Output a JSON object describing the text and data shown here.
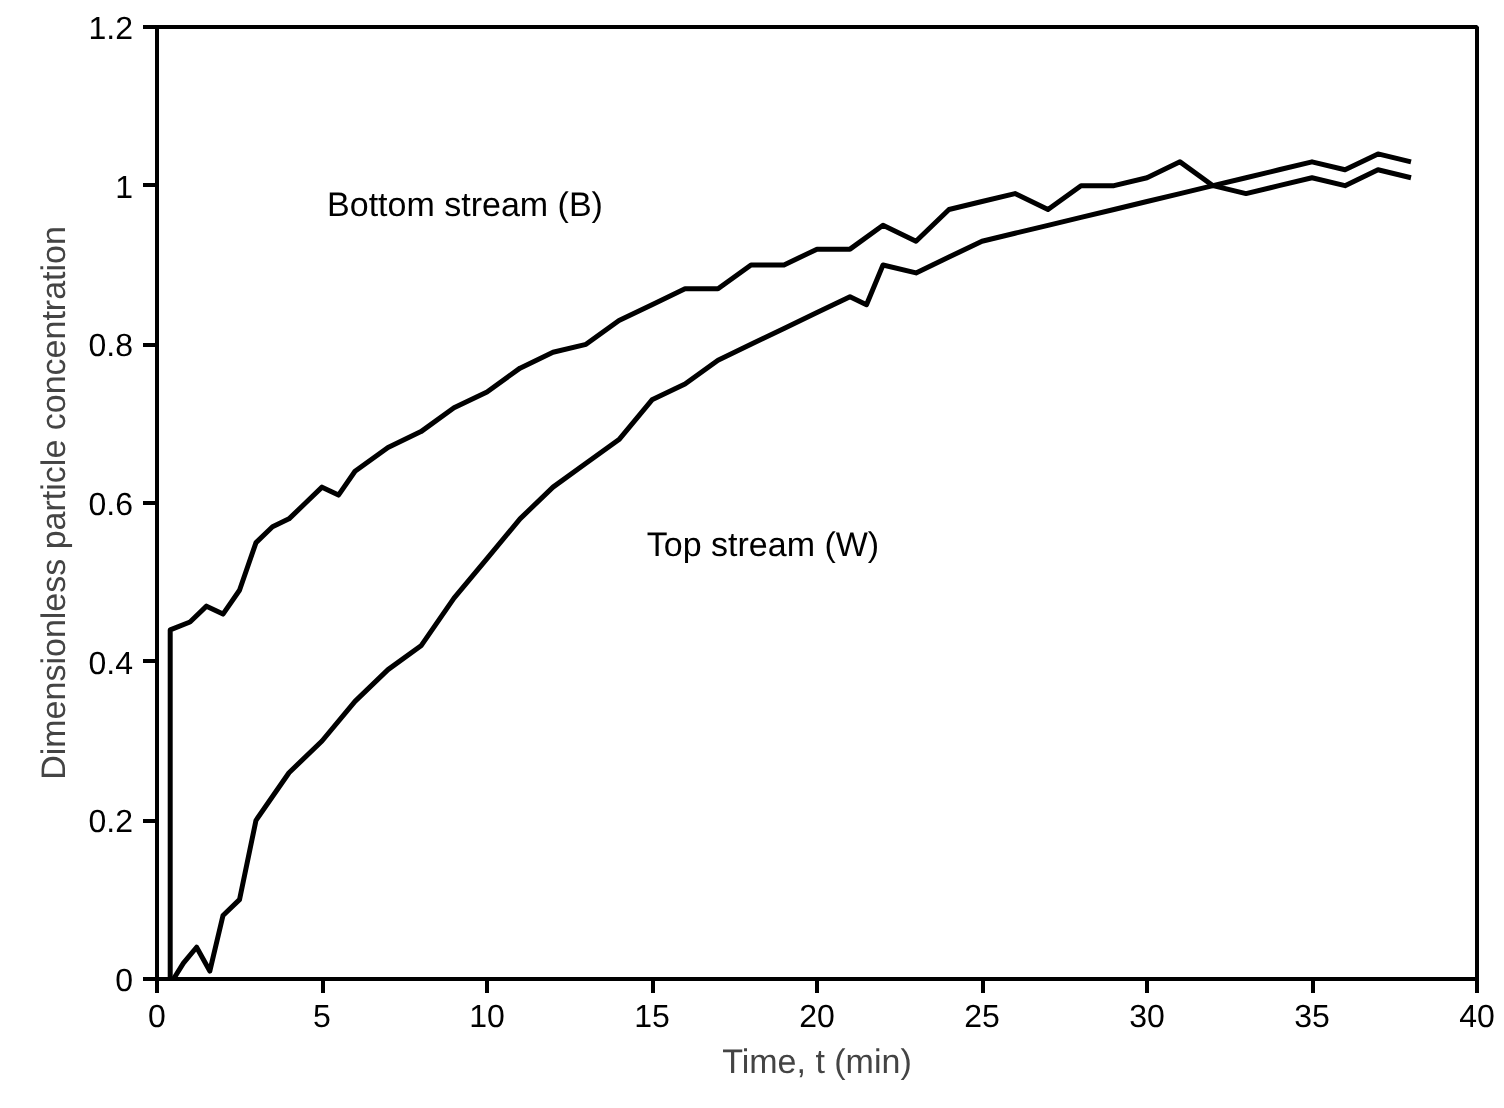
{
  "chart_data": {
    "type": "line",
    "xlabel": "Time, t (min)",
    "ylabel": "Dimensionless particle concentration",
    "xlim": [
      0,
      40
    ],
    "xticks": [
      0,
      5,
      10,
      15,
      20,
      25,
      30,
      35,
      40
    ],
    "ylim": [
      0,
      1.2
    ],
    "yticks": [
      0,
      0.2,
      0.4,
      0.6,
      0.8,
      1,
      1.2
    ],
    "grid": false,
    "legend": false,
    "marker": "none",
    "line_style": "solid",
    "series": [
      {
        "name": "Bottom stream (B)",
        "color": "#000000",
        "x": [
          0.4,
          0.4,
          1,
          1.5,
          2,
          2.5,
          3,
          3.5,
          4,
          4.5,
          5,
          5.5,
          6,
          7,
          8,
          9,
          10,
          11,
          12,
          13,
          14,
          15,
          16,
          17,
          18,
          19,
          20,
          21,
          22,
          23,
          24,
          25,
          26,
          27,
          28,
          29,
          30,
          31,
          32,
          33,
          34,
          35,
          36,
          37,
          38
        ],
        "values": [
          0,
          0.44,
          0.45,
          0.47,
          0.46,
          0.49,
          0.55,
          0.57,
          0.58,
          0.6,
          0.62,
          0.61,
          0.64,
          0.67,
          0.69,
          0.72,
          0.74,
          0.77,
          0.79,
          0.8,
          0.83,
          0.85,
          0.87,
          0.87,
          0.9,
          0.9,
          0.92,
          0.92,
          0.95,
          0.93,
          0.97,
          0.98,
          0.99,
          0.97,
          1.0,
          1.0,
          1.01,
          1.03,
          1.0,
          1.01,
          1.02,
          1.03,
          1.02,
          1.04,
          1.03
        ]
      },
      {
        "name": "Top stream (W)",
        "color": "#000000",
        "x": [
          0.5,
          0.8,
          1.2,
          1.6,
          2,
          2.5,
          3,
          3.5,
          4,
          5,
          6,
          7,
          8,
          9,
          10,
          11,
          12,
          13,
          14,
          15,
          16,
          17,
          18,
          19,
          20,
          21,
          21.5,
          22,
          23,
          24,
          25,
          26,
          27,
          28,
          29,
          30,
          31,
          32,
          33,
          34,
          35,
          36,
          37,
          38
        ],
        "values": [
          0.0,
          0.02,
          0.04,
          0.01,
          0.08,
          0.1,
          0.2,
          0.23,
          0.26,
          0.3,
          0.35,
          0.39,
          0.42,
          0.48,
          0.53,
          0.58,
          0.62,
          0.65,
          0.68,
          0.73,
          0.75,
          0.78,
          0.8,
          0.82,
          0.84,
          0.86,
          0.85,
          0.9,
          0.89,
          0.91,
          0.93,
          0.94,
          0.95,
          0.96,
          0.97,
          0.98,
          0.99,
          1.0,
          0.99,
          1.0,
          1.01,
          1.0,
          1.02,
          1.01
        ]
      }
    ]
  }
}
